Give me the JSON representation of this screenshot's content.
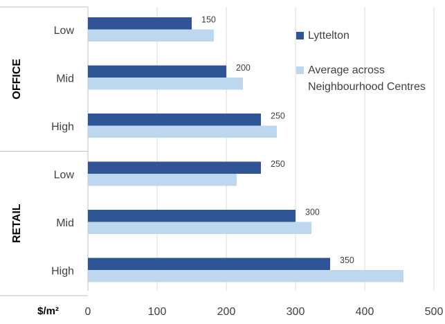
{
  "chart_data": {
    "type": "bar",
    "orientation": "horizontal",
    "groups": [
      {
        "name": "OFFICE",
        "categories": [
          "Low",
          "Mid",
          "High"
        ]
      },
      {
        "name": "RETAIL",
        "categories": [
          "Low",
          "Mid",
          "High"
        ]
      }
    ],
    "series": [
      {
        "name": "Lyttelton",
        "color": "#2f5597",
        "values": [
          150,
          200,
          250,
          250,
          300,
          350
        ],
        "data_labels": [
          "150",
          "200",
          "250",
          "250",
          "300",
          "350"
        ]
      },
      {
        "name": "Average across Neighbourhood Centres",
        "color": "#bdd7ee",
        "values": [
          182,
          224,
          273,
          215,
          323,
          456
        ]
      }
    ],
    "legend": {
      "position": "right",
      "entries": [
        "Lyttelton",
        "Average across",
        "Neighbourhood Centres"
      ]
    },
    "xlabel": "$/m²",
    "xlim": [
      0,
      500
    ],
    "xticks": [
      "0",
      "100",
      "200",
      "300",
      "400",
      "500"
    ],
    "grid": "vertical"
  }
}
